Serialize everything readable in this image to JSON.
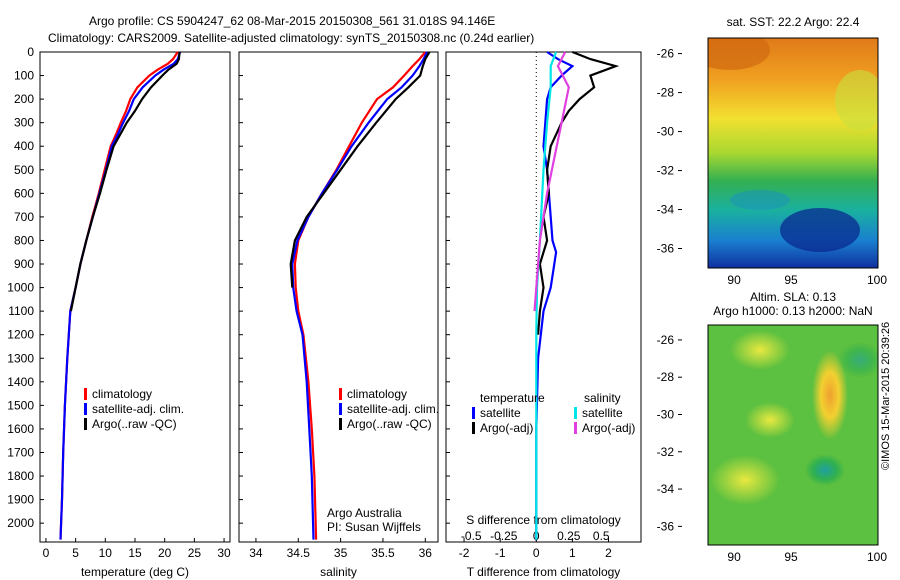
{
  "header": {
    "title_line1": "Argo profile: CS 5904247_62 08-Mar-2015 20150308_561 31.018S 94.146E",
    "title_line2": "Climatology: CARS2009. Satellite-adjusted climatology: synTS_20150308.nc (0.24d earlier)"
  },
  "footer": {
    "stamp": "©IMOS 15-Mar-2015 20:39:26"
  },
  "colors": {
    "climatology": "#ff0000",
    "satellite": "#0000ff",
    "argo": "#000000",
    "sat_salinity": "#00e5e5",
    "argo_salinity": "#e040e0"
  },
  "chart_data": [
    {
      "type": "line",
      "id": "temperature",
      "xlabel": "temperature (deg C)",
      "ylabel": "",
      "xlim": [
        -1,
        31
      ],
      "ylim": [
        2080,
        0
      ],
      "xticks": [
        0,
        5,
        10,
        15,
        20,
        25,
        30
      ],
      "yticks": [
        0,
        100,
        200,
        300,
        400,
        500,
        600,
        700,
        800,
        900,
        1000,
        1100,
        1200,
        1300,
        1400,
        1500,
        1600,
        1700,
        1800,
        1900,
        2000
      ],
      "legend": [
        "climatology",
        "satellite-adj. clim.",
        "Argo(..raw -QC)"
      ],
      "series": [
        {
          "name": "climatology",
          "color": "#ff0000",
          "x": [
            22.2,
            21.4,
            20.5,
            18.8,
            17.4,
            15.4,
            14.2,
            13.5,
            12.6,
            11.8,
            10.9,
            9.9,
            8.9,
            7.8,
            6.8,
            5.8,
            5.0,
            4.1,
            3.6,
            3.2,
            2.9,
            2.7,
            2.55,
            2.45
          ],
          "y": [
            0,
            30,
            50,
            75,
            100,
            150,
            200,
            250,
            300,
            350,
            400,
            500,
            600,
            700,
            800,
            900,
            1000,
            1100,
            1300,
            1500,
            1700,
            1900,
            2000,
            2070
          ]
        },
        {
          "name": "satellite-adj. clim.",
          "color": "#0000ff",
          "x": [
            22.6,
            22.2,
            21.5,
            19.8,
            18.4,
            16.3,
            14.8,
            14.0,
            13.0,
            12.1,
            11.1,
            10.1,
            9.0,
            7.9,
            6.8,
            5.8,
            5.0,
            4.1,
            3.6,
            3.2,
            2.9,
            2.7,
            2.55,
            2.45
          ],
          "y": [
            0,
            30,
            50,
            75,
            100,
            150,
            200,
            250,
            300,
            350,
            400,
            500,
            600,
            700,
            800,
            900,
            1000,
            1100,
            1300,
            1500,
            1700,
            1900,
            2000,
            2070
          ]
        },
        {
          "name": "Argo(..raw -QC)",
          "color": "#000000",
          "x": [
            22.5,
            22.4,
            22.0,
            20.6,
            19.6,
            17.7,
            16.2,
            15.0,
            13.6,
            12.5,
            11.4,
            10.2,
            9.1,
            7.9,
            6.8,
            5.8,
            5.0,
            4.2
          ],
          "y": [
            0,
            30,
            50,
            75,
            100,
            150,
            200,
            250,
            300,
            350,
            400,
            500,
            600,
            700,
            800,
            900,
            1000,
            1100
          ]
        }
      ]
    },
    {
      "type": "line",
      "id": "salinity",
      "xlabel": "salinity",
      "ylabel": "",
      "xlim": [
        33.8,
        36.15
      ],
      "ylim": [
        2080,
        0
      ],
      "xticks": [
        34,
        34.5,
        35,
        35.5,
        36
      ],
      "legend": [
        "climatology",
        "satellite-adj. clim.",
        "Argo(..raw -QC)"
      ],
      "annotation": [
        "Argo Australia",
        "PI: Susan Wijffels"
      ],
      "series": [
        {
          "name": "climatology",
          "color": "#ff0000",
          "x": [
            36.0,
            35.93,
            35.85,
            35.75,
            35.62,
            35.43,
            35.25,
            35.1,
            34.95,
            34.78,
            34.62,
            34.5,
            34.46,
            34.47,
            34.5,
            34.56,
            34.62,
            34.66,
            34.69,
            34.71
          ],
          "y": [
            0,
            30,
            60,
            100,
            150,
            200,
            300,
            400,
            500,
            600,
            700,
            800,
            900,
            1000,
            1100,
            1200,
            1400,
            1600,
            1800,
            2070
          ]
        },
        {
          "name": "satellite-adj. clim.",
          "color": "#0000ff",
          "x": [
            36.02,
            35.98,
            35.93,
            35.85,
            35.72,
            35.55,
            35.33,
            35.13,
            34.96,
            34.78,
            34.62,
            34.49,
            34.43,
            34.44,
            34.48,
            34.55,
            34.6,
            34.63,
            34.66,
            34.68
          ],
          "y": [
            0,
            30,
            60,
            100,
            150,
            200,
            300,
            400,
            500,
            600,
            700,
            800,
            900,
            1000,
            1100,
            1200,
            1400,
            1600,
            1800,
            2070
          ]
        },
        {
          "name": "Argo(..raw -QC)",
          "color": "#000000",
          "x": [
            36.05,
            36.0,
            35.97,
            35.94,
            35.8,
            35.65,
            35.42,
            35.2,
            35.0,
            34.8,
            34.6,
            34.46,
            34.41,
            34.43
          ],
          "y": [
            0,
            30,
            60,
            100,
            150,
            200,
            300,
            400,
            500,
            600,
            700,
            800,
            900,
            1000
          ]
        }
      ]
    },
    {
      "type": "line",
      "id": "difference",
      "xlabel": "T difference from climatology",
      "xlabel_top": "S difference from climatology",
      "xlim": [
        -2.5,
        2.9
      ],
      "ylim": [
        2080,
        0
      ],
      "xticks": [
        -2,
        -1,
        0,
        1,
        2
      ],
      "xticks_s": [
        -0.5,
        -0.25,
        0,
        0.25,
        0.5
      ],
      "legend_headers": [
        "temperature",
        "salinity"
      ],
      "legend_temperature": [
        "satellite",
        "Argo(-adj)"
      ],
      "legend_salinity": [
        "satellite",
        "Argo(-adj)"
      ],
      "series": [
        {
          "name": "satellite",
          "color": "#0000ff",
          "x": [
            0.3,
            0.6,
            1.0,
            0.7,
            0.4,
            0.3,
            0.25,
            0.2,
            0.3,
            0.35,
            0.4,
            0.45,
            0.55,
            0.5,
            0.4,
            0.2,
            0.05,
            0,
            0
          ],
          "y": [
            0,
            30,
            60,
            100,
            150,
            200,
            300,
            400,
            500,
            600,
            700,
            800,
            850,
            900,
            1000,
            1100,
            1300,
            1600,
            2070
          ]
        },
        {
          "name": "Argo(-adj)",
          "color": "#000000",
          "x": [
            1.0,
            1.5,
            2.2,
            1.5,
            1.6,
            1.2,
            0.9,
            0.7,
            0.4,
            0.3,
            0.35,
            0.2,
            0.3,
            0.1,
            0.2,
            0.1,
            0.05
          ],
          "y": [
            0,
            30,
            60,
            100,
            150,
            200,
            250,
            300,
            400,
            500,
            600,
            700,
            800,
            900,
            1000,
            1100,
            1200
          ]
        },
        {
          "name": "satellite (salinity)",
          "color": "#00e5e5",
          "x": [
            0.55,
            0.4,
            0.4,
            0.3,
            0.2,
            0.1,
            0.02,
            0.0,
            0.0,
            0.0,
            0.0
          ],
          "y": [
            0,
            60,
            150,
            300,
            500,
            800,
            1000,
            1200,
            1500,
            1800,
            2070
          ]
        },
        {
          "name": "Argo(-adj) (salinity)",
          "color": "#e040e0",
          "x": [
            0.8,
            0.6,
            0.9,
            0.7,
            0.5,
            0.3,
            0.1,
            0.0,
            -0.05
          ],
          "y": [
            0,
            60,
            150,
            300,
            450,
            600,
            800,
            1000,
            1100
          ]
        }
      ]
    },
    {
      "type": "heatmap",
      "id": "sst_map",
      "title": "sat. SST: 22.2 Argo: 22.4",
      "xlim": [
        88.5,
        100
      ],
      "ylim": [
        -37,
        -25.2
      ],
      "xticks": [
        90,
        95,
        100
      ],
      "yticks": [
        -26,
        -28,
        -30,
        -32,
        -34,
        -36
      ]
    },
    {
      "type": "heatmap",
      "id": "sla_map",
      "title_line1": "Altim. SLA: 0.13",
      "title_line2": "Argo h1000: 0.13 h2000: NaN",
      "xlim": [
        88.5,
        100
      ],
      "ylim": [
        -37,
        -25.2
      ],
      "xticks": [
        90,
        95,
        100
      ],
      "yticks": [
        -26,
        -28,
        -30,
        -32,
        -34,
        -36
      ]
    }
  ]
}
